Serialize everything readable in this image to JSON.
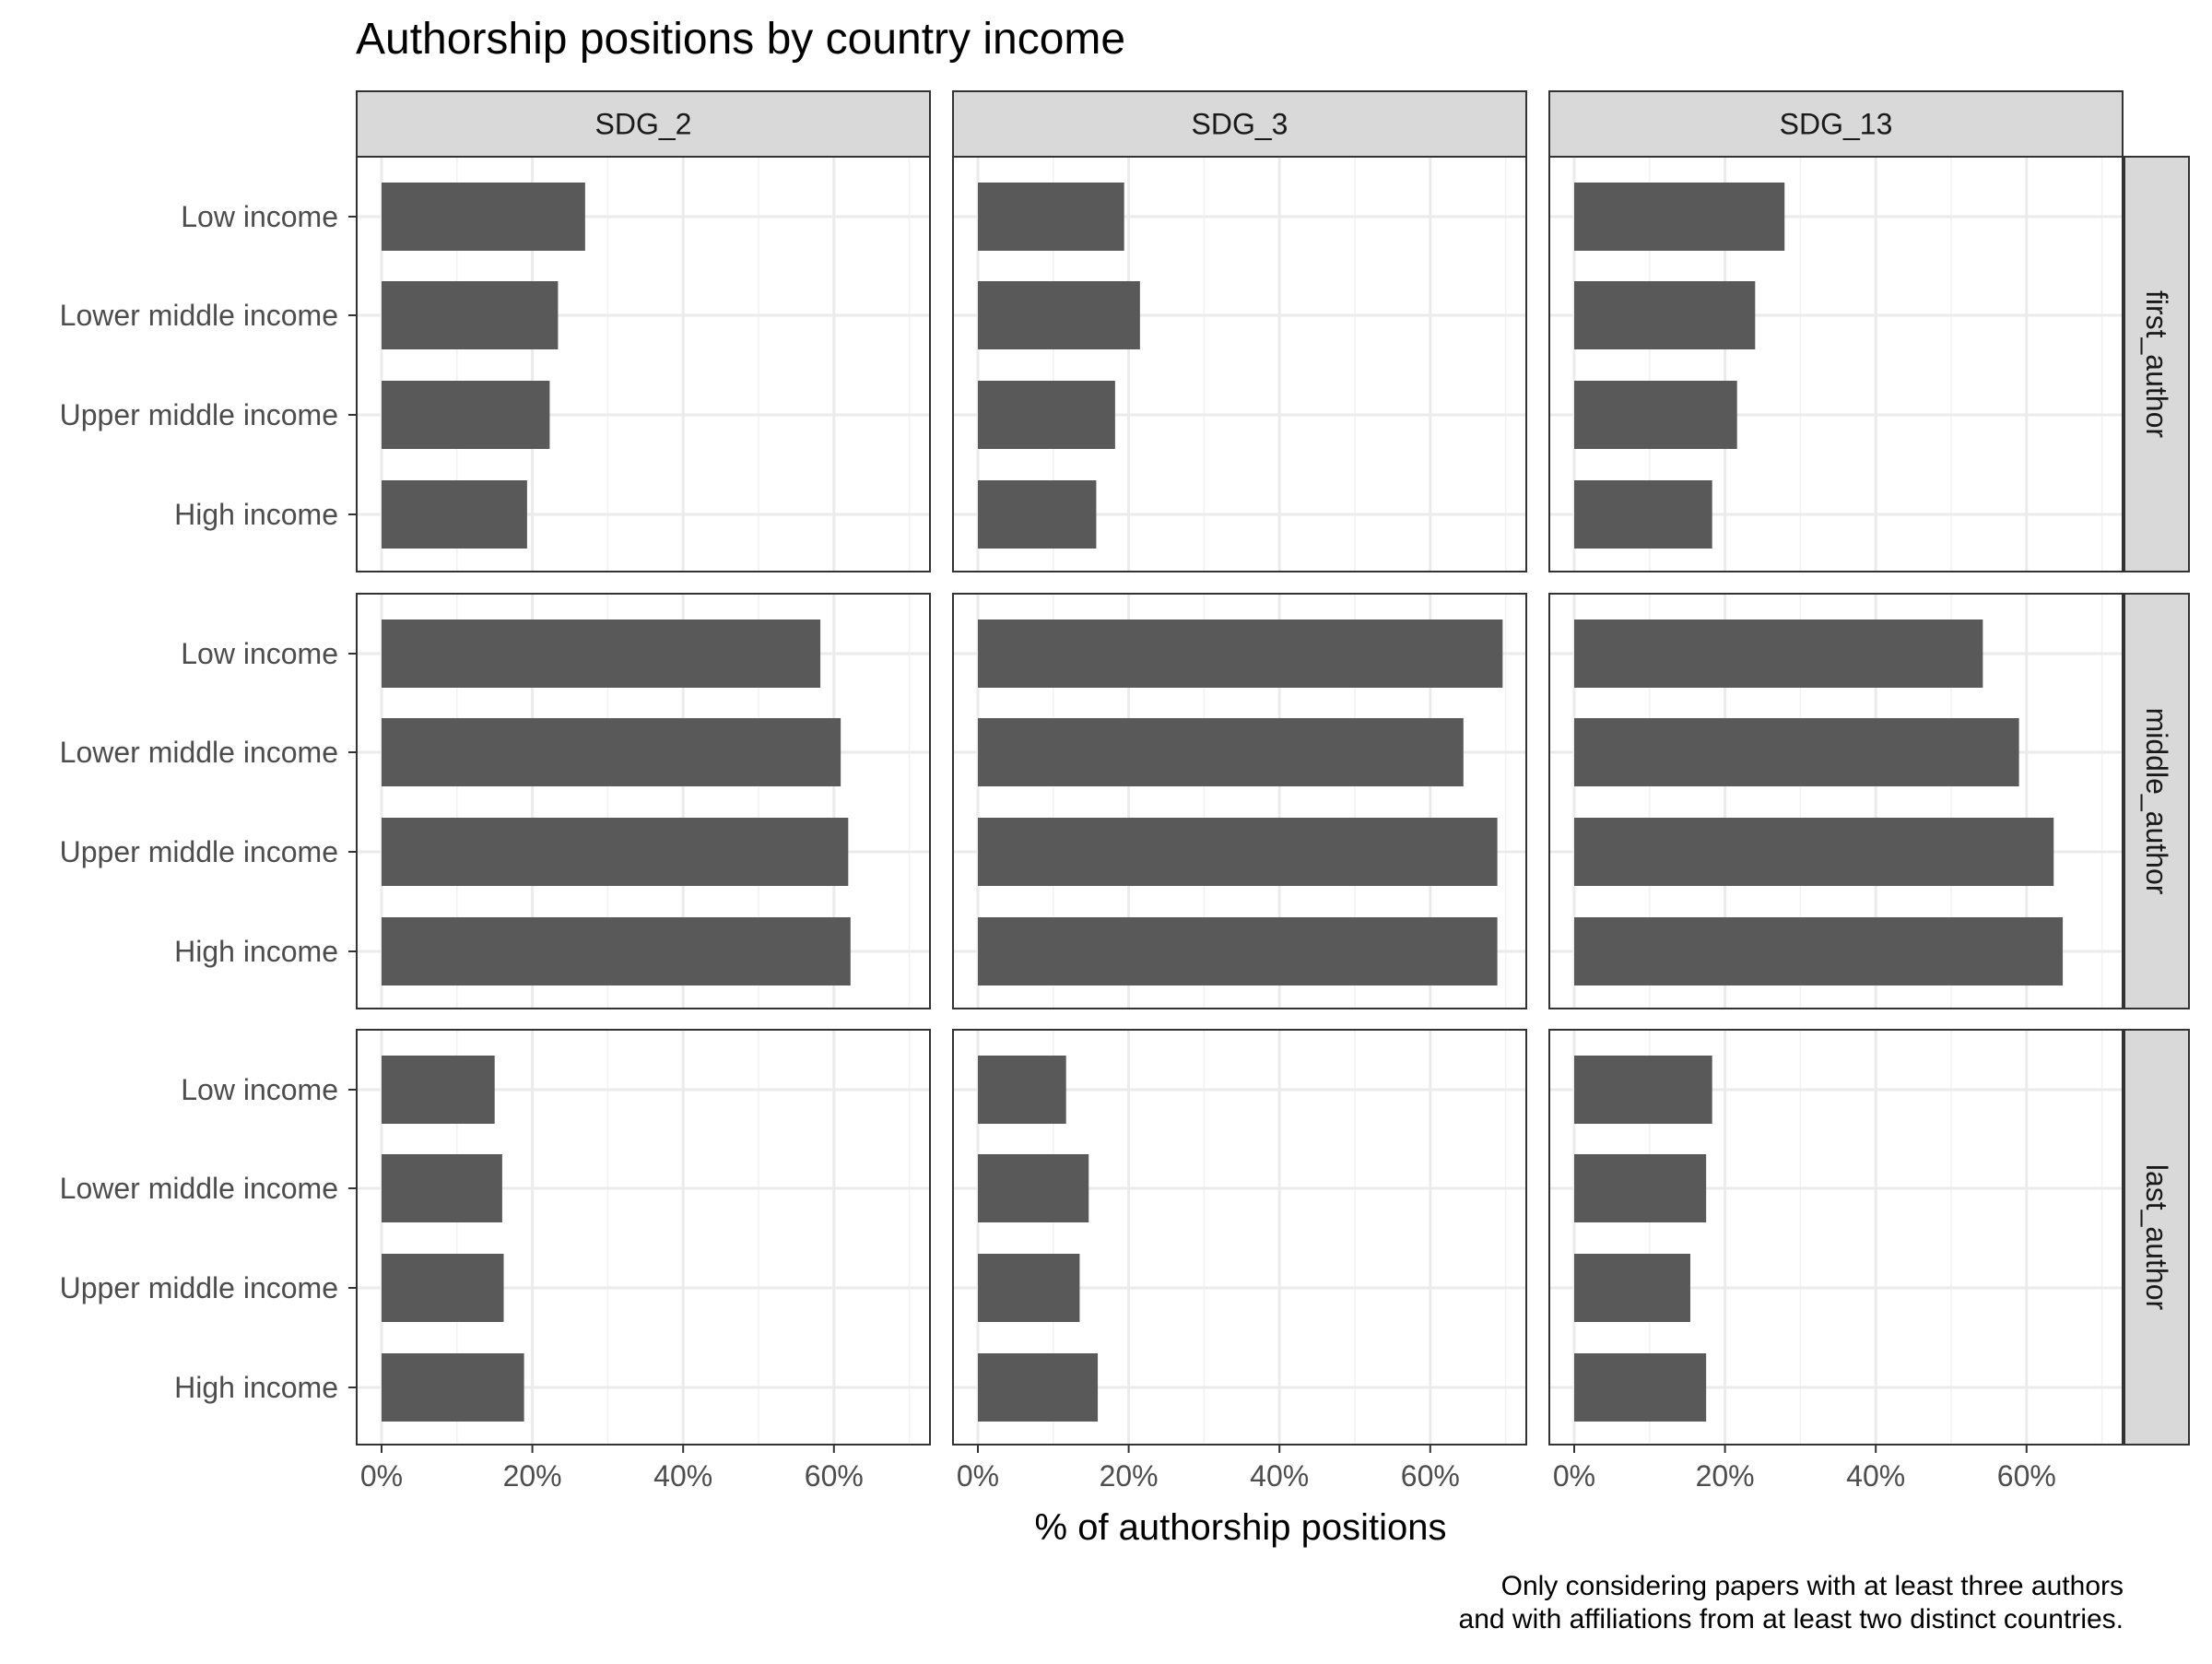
{
  "chart_data": {
    "type": "bar",
    "orientation": "horizontal",
    "title": "Authorship positions by country income",
    "xlabel": "% of authorship positions",
    "ylabel": "",
    "caption_lines": [
      "Only considering papers with at least three authors",
      "and with affiliations from at least two distinct countries."
    ],
    "xlim": [
      0,
      72
    ],
    "x_ticks": [
      0,
      20,
      40,
      60
    ],
    "x_tick_labels": [
      "0%",
      "20%",
      "40%",
      "60%"
    ],
    "grid": true,
    "categories": [
      "Low income",
      "Lower middle income",
      "Upper middle income",
      "High income"
    ],
    "columns": [
      "SDG_2",
      "SDG_3",
      "SDG_13"
    ],
    "rows": [
      "first_author",
      "middle_author",
      "last_author"
    ],
    "bar_color": "#595959",
    "panels": [
      {
        "row": "first_author",
        "column": "SDG_2",
        "values": [
          27.0,
          23.4,
          22.3,
          19.3
        ]
      },
      {
        "row": "first_author",
        "column": "SDG_3",
        "values": [
          19.4,
          21.5,
          18.2,
          15.7
        ]
      },
      {
        "row": "first_author",
        "column": "SDG_13",
        "values": [
          27.9,
          24.0,
          21.6,
          18.3
        ]
      },
      {
        "row": "middle_author",
        "column": "SDG_2",
        "values": [
          58.2,
          60.9,
          61.9,
          62.2
        ]
      },
      {
        "row": "middle_author",
        "column": "SDG_3",
        "values": [
          69.6,
          64.4,
          68.9,
          68.9
        ]
      },
      {
        "row": "middle_author",
        "column": "SDG_13",
        "values": [
          54.2,
          59.0,
          63.6,
          64.8
        ]
      },
      {
        "row": "last_author",
        "column": "SDG_2",
        "values": [
          15.0,
          16.0,
          16.2,
          18.9
        ]
      },
      {
        "row": "last_author",
        "column": "SDG_3",
        "values": [
          11.7,
          14.7,
          13.5,
          15.9
        ]
      },
      {
        "row": "last_author",
        "column": "SDG_13",
        "values": [
          18.3,
          17.5,
          15.4,
          17.5
        ]
      }
    ]
  }
}
